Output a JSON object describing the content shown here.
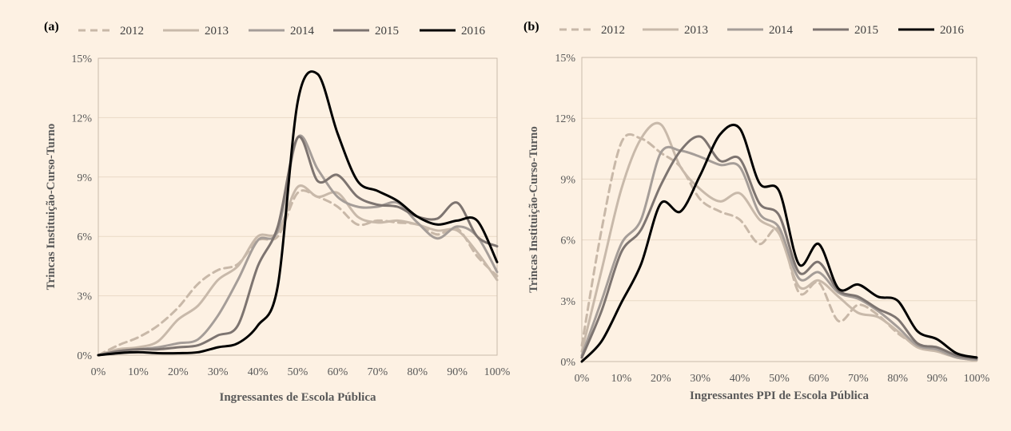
{
  "chart_data": [
    {
      "type": "line",
      "panel_label": "(a)",
      "xlabel": "Ingressantes de Escola Pública",
      "ylabel": "Trincas Instituição-Curso-Turno",
      "xlim": [
        0,
        100
      ],
      "ylim": [
        0,
        15
      ],
      "x_ticks": [
        "0%",
        "10%",
        "20%",
        "30%",
        "40%",
        "50%",
        "60%",
        "70%",
        "80%",
        "90%",
        "100%"
      ],
      "y_ticks": [
        "0%",
        "3%",
        "6%",
        "9%",
        "12%",
        "15%"
      ],
      "grid": "horizontal",
      "legend_position": "top",
      "x": [
        0,
        5,
        10,
        15,
        20,
        25,
        30,
        35,
        40,
        45,
        50,
        55,
        60,
        65,
        70,
        75,
        80,
        85,
        90,
        95,
        100
      ],
      "series": [
        {
          "name": "2012",
          "color": "#c8b8a8",
          "dash": true,
          "values": [
            0,
            0.5,
            0.9,
            1.5,
            2.4,
            3.6,
            4.3,
            4.6,
            5.8,
            6.0,
            8.2,
            8.0,
            7.5,
            6.6,
            6.8,
            6.7,
            6.6,
            6.1,
            6.4,
            5.0,
            4.0
          ]
        },
        {
          "name": "2013",
          "color": "#c8b9aa",
          "dash": false,
          "values": [
            0,
            0.3,
            0.4,
            0.7,
            1.8,
            2.5,
            3.8,
            4.5,
            6.0,
            6.2,
            8.5,
            8.0,
            8.2,
            7.0,
            6.7,
            6.8,
            6.6,
            6.3,
            6.3,
            5.2,
            3.8
          ]
        },
        {
          "name": "2014",
          "color": "#a59d98",
          "dash": false,
          "values": [
            0,
            0.2,
            0.3,
            0.4,
            0.6,
            0.8,
            2.0,
            3.8,
            5.8,
            6.3,
            11.0,
            9.4,
            8.0,
            7.5,
            7.5,
            7.7,
            6.7,
            5.9,
            6.5,
            6.0,
            4.2
          ]
        },
        {
          "name": "2015",
          "color": "#7d7470",
          "dash": false,
          "values": [
            0,
            0.2,
            0.3,
            0.3,
            0.4,
            0.5,
            1.0,
            1.5,
            4.5,
            6.5,
            11.0,
            8.8,
            9.1,
            8.0,
            7.6,
            7.5,
            7.0,
            6.9,
            7.7,
            6.0,
            5.5
          ]
        },
        {
          "name": "2016",
          "color": "#000000",
          "dash": false,
          "values": [
            0,
            0.1,
            0.15,
            0.1,
            0.1,
            0.15,
            0.4,
            0.6,
            1.5,
            3.5,
            12.8,
            14.2,
            11.2,
            8.8,
            8.3,
            7.8,
            7.0,
            6.6,
            6.8,
            6.8,
            4.7
          ]
        }
      ]
    },
    {
      "type": "line",
      "panel_label": "(b)",
      "xlabel": "Ingressantes PPI de Escola Pública",
      "ylabel": "Trincas Instituição-Curso-Turno",
      "xlim": [
        0,
        100
      ],
      "ylim": [
        0,
        15
      ],
      "x_ticks": [
        "0%",
        "10%",
        "20%",
        "30%",
        "40%",
        "50%",
        "60%",
        "70%",
        "80%",
        "90%",
        "100%"
      ],
      "y_ticks": [
        "0%",
        "3%",
        "6%",
        "9%",
        "12%",
        "15%"
      ],
      "grid": "horizontal",
      "legend_position": "top",
      "x": [
        0,
        5,
        10,
        15,
        20,
        25,
        30,
        35,
        40,
        45,
        50,
        55,
        60,
        65,
        70,
        75,
        80,
        85,
        90,
        95,
        100
      ],
      "series": [
        {
          "name": "2012",
          "color": "#c8b8a8",
          "dash": true,
          "values": [
            0.8,
            6.5,
            10.8,
            11.0,
            10.3,
            9.6,
            8.0,
            7.4,
            7.0,
            5.8,
            6.5,
            3.4,
            3.9,
            2.0,
            2.8,
            2.3,
            1.4,
            0.8,
            0.5,
            0.2,
            0.05
          ]
        },
        {
          "name": "2013",
          "color": "#c8b9aa",
          "dash": false,
          "values": [
            0.5,
            4.5,
            8.5,
            11.0,
            11.7,
            9.6,
            8.5,
            7.9,
            8.3,
            7.0,
            6.3,
            3.7,
            4.0,
            3.2,
            2.4,
            2.2,
            1.5,
            0.7,
            0.5,
            0.2,
            0.05
          ]
        },
        {
          "name": "2014",
          "color": "#a59d98",
          "dash": false,
          "values": [
            0.3,
            3.0,
            5.8,
            7.0,
            10.3,
            10.4,
            10.1,
            9.7,
            9.6,
            7.3,
            6.6,
            4.1,
            4.4,
            3.4,
            3.1,
            2.5,
            1.7,
            0.8,
            0.6,
            0.2,
            0.1
          ]
        },
        {
          "name": "2015",
          "color": "#7d7470",
          "dash": false,
          "values": [
            0.2,
            2.5,
            5.4,
            6.5,
            8.7,
            10.4,
            11.1,
            9.9,
            10.0,
            7.8,
            7.2,
            4.4,
            4.9,
            3.5,
            3.2,
            2.6,
            2.1,
            0.9,
            0.7,
            0.3,
            0.15
          ]
        },
        {
          "name": "2016",
          "color": "#000000",
          "dash": false,
          "values": [
            0,
            1.0,
            2.9,
            4.8,
            7.8,
            7.4,
            9.2,
            11.2,
            11.5,
            8.8,
            8.4,
            4.8,
            5.8,
            3.6,
            3.8,
            3.2,
            3.0,
            1.5,
            1.1,
            0.4,
            0.2
          ]
        }
      ]
    }
  ]
}
